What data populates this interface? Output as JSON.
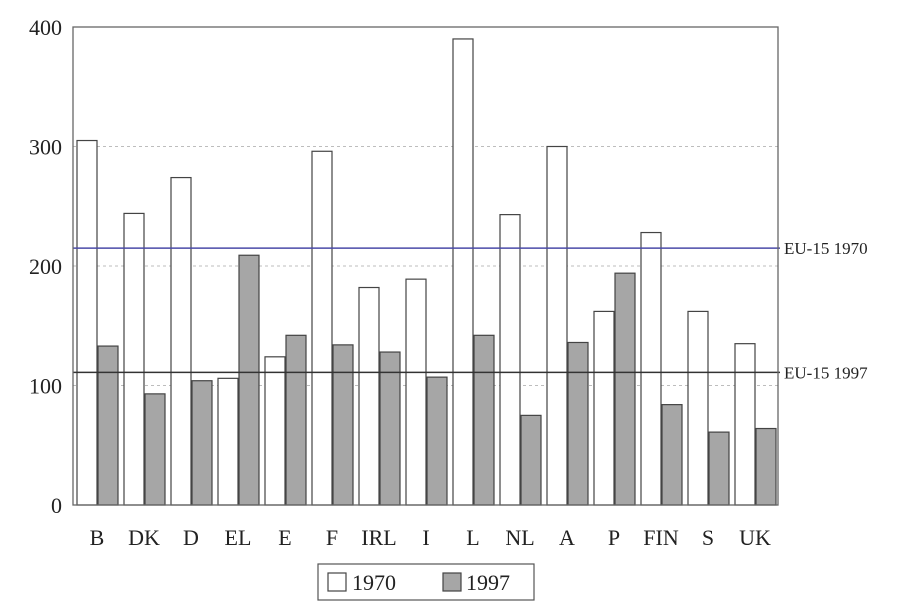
{
  "chart_data": {
    "type": "bar",
    "categories": [
      "B",
      "DK",
      "D",
      "EL",
      "E",
      "F",
      "IRL",
      "I",
      "L",
      "NL",
      "A",
      "P",
      "FIN",
      "S",
      "UK"
    ],
    "series": [
      {
        "name": "1970",
        "values": [
          305,
          244,
          274,
          106,
          124,
          296,
          182,
          189,
          390,
          243,
          300,
          162,
          228,
          162,
          135
        ],
        "color": "#ffffff"
      },
      {
        "name": "1997",
        "values": [
          133,
          93,
          104,
          209,
          142,
          134,
          128,
          107,
          142,
          75,
          136,
          194,
          84,
          61,
          64
        ],
        "color": "#a6a6a6"
      }
    ],
    "ylim": [
      0,
      400
    ],
    "yticks": [
      "0",
      "100",
      "200",
      "300",
      "400"
    ],
    "grid": true,
    "reference_lines": [
      {
        "label": "EU-15 1970",
        "value": 215,
        "color": "#4a4aa8"
      },
      {
        "label": "EU-15 1997",
        "value": 111,
        "color": "#333333"
      }
    ],
    "legend_position": "bottom-center"
  }
}
